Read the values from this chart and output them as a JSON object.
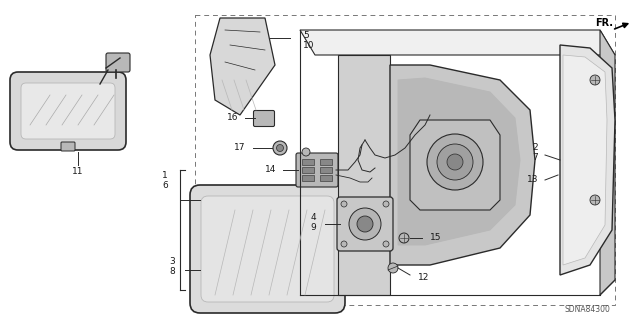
{
  "bg_color": "#ffffff",
  "diagram_code": "SDNA84300",
  "line_color": "#2a2a2a",
  "light_gray": "#d8d8d8",
  "mid_gray": "#b8b8b8",
  "dark_gray": "#888888",
  "text_color": "#1a1a1a"
}
